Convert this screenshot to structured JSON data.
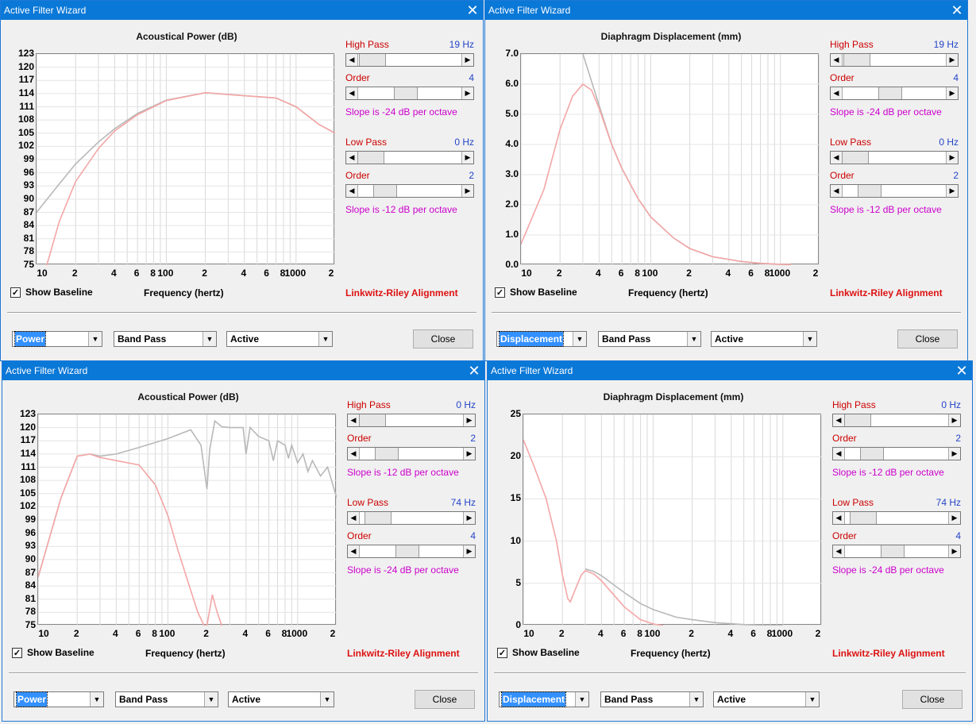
{
  "windows": [
    {
      "title": "Active Filter Wizard",
      "chart_title": "Acoustical Power (dB)",
      "kind": "power",
      "high_pass": {
        "label": "High Pass",
        "value": "19 Hz",
        "order_label": "Order",
        "order": "4",
        "slope": "Slope is -24 dB per octave"
      },
      "low_pass": {
        "label": "Low Pass",
        "value": "0 Hz",
        "order_label": "Order",
        "order": "2",
        "slope": "Slope is -12 dB per octave"
      },
      "show_baseline": "Show Baseline",
      "x_axis_title": "Frequency (hertz)",
      "alignment": "Linkwitz-Riley Alignment",
      "mode": "Power",
      "band": "Band Pass",
      "type": "Active",
      "close": "Close",
      "sliders": {
        "hp": 0.02,
        "hp_order": 0.45,
        "lp": 0.0,
        "lp_order": 0.2
      }
    },
    {
      "title": "Active Filter Wizard",
      "chart_title": "Diaphragm Displacement (mm)",
      "kind": "disp",
      "high_pass": {
        "label": "High Pass",
        "value": "19 Hz",
        "order_label": "Order",
        "order": "4",
        "slope": "Slope is -24 dB per octave"
      },
      "low_pass": {
        "label": "Low Pass",
        "value": "0 Hz",
        "order_label": "Order",
        "order": "2",
        "slope": "Slope is -12 dB per octave"
      },
      "show_baseline": "Show Baseline",
      "x_axis_title": "Frequency (hertz)",
      "alignment": "Linkwitz-Riley Alignment",
      "mode": "Displacement",
      "band": "Band Pass",
      "type": "Active",
      "close": "Close",
      "sliders": {
        "hp": 0.02,
        "hp_order": 0.45,
        "lp": 0.0,
        "lp_order": 0.2
      }
    },
    {
      "title": "Active Filter Wizard",
      "chart_title": "Acoustical Power (dB)",
      "kind": "power",
      "high_pass": {
        "label": "High Pass",
        "value": "0 Hz",
        "order_label": "Order",
        "order": "2",
        "slope": "Slope is -12 dB per octave"
      },
      "low_pass": {
        "label": "Low Pass",
        "value": "74 Hz",
        "order_label": "Order",
        "order": "4",
        "slope": "Slope is -24 dB per octave"
      },
      "show_baseline": "Show Baseline",
      "x_axis_title": "Frequency (hertz)",
      "alignment": "Linkwitz-Riley Alignment",
      "mode": "Power",
      "band": "Band Pass",
      "type": "Active",
      "close": "Close",
      "sliders": {
        "hp": 0.0,
        "hp_order": 0.2,
        "lp": 0.07,
        "lp_order": 0.45
      }
    },
    {
      "title": "Active Filter Wizard",
      "chart_title": "Diaphragm Displacement (mm)",
      "kind": "disp",
      "high_pass": {
        "label": "High Pass",
        "value": "0 Hz",
        "order_label": "Order",
        "order": "2",
        "slope": "Slope is -12 dB per octave"
      },
      "low_pass": {
        "label": "Low Pass",
        "value": "74 Hz",
        "order_label": "Order",
        "order": "4",
        "slope": "Slope is -24 dB per octave"
      },
      "show_baseline": "Show Baseline",
      "x_axis_title": "Frequency (hertz)",
      "alignment": "Linkwitz-Riley Alignment",
      "mode": "Displacement",
      "band": "Band Pass",
      "type": "Active",
      "close": "Close",
      "sliders": {
        "hp": 0.0,
        "hp_order": 0.2,
        "lp": 0.07,
        "lp_order": 0.45
      }
    }
  ],
  "chart_data": [
    {
      "type": "line",
      "title": "Acoustical Power (dB)",
      "xlabel": "Frequency (hertz)",
      "x_scale": "log",
      "xlim": [
        10,
        2000
      ],
      "ylim": [
        75,
        123
      ],
      "x_ticks": [
        "10",
        "2",
        "4",
        "6",
        "8",
        "100",
        "2",
        "4",
        "6",
        "8",
        "1000",
        "2"
      ],
      "y_ticks": [
        "123",
        "120",
        "117",
        "114",
        "111",
        "108",
        "105",
        "102",
        "99",
        "96",
        "93",
        "90",
        "87",
        "84",
        "81",
        "78",
        "75"
      ],
      "series": [
        {
          "color": "#b8b8b8",
          "x": [
            10,
            15,
            20,
            30,
            40,
            60,
            100,
            200,
            400,
            700,
            1000,
            1500,
            2000
          ],
          "y": [
            87,
            93.5,
            98,
            103,
            106,
            109.5,
            112.5,
            114.2,
            113.5,
            113,
            111,
            107,
            105
          ]
        },
        {
          "color": "#f4a6a6",
          "x": [
            12,
            15,
            20,
            30,
            40,
            60,
            100,
            200,
            400,
            700,
            1000,
            1500,
            2000
          ],
          "y": [
            75,
            85,
            94,
            101.5,
            105.5,
            109.2,
            112.4,
            114.2,
            113.5,
            113,
            111,
            107,
            105
          ]
        }
      ]
    },
    {
      "type": "line",
      "title": "Diaphragm Displacement (mm)",
      "xlabel": "Frequency (hertz)",
      "x_scale": "log",
      "xlim": [
        10,
        2000
      ],
      "ylim": [
        0,
        7
      ],
      "x_ticks": [
        "10",
        "2",
        "4",
        "6",
        "8",
        "100",
        "2",
        "4",
        "6",
        "8",
        "1000",
        "2"
      ],
      "y_ticks": [
        "7.0",
        "6.0",
        "5.0",
        "4.0",
        "3.0",
        "2.0",
        "1.0",
        "0.0"
      ],
      "series": [
        {
          "color": "#b8b8b8",
          "x": [
            30,
            40,
            50,
            60,
            80,
            100,
            150,
            200,
            300,
            500,
            700,
            1000,
            1200
          ],
          "y": [
            7.0,
            5.3,
            4.0,
            3.2,
            2.2,
            1.6,
            0.9,
            0.55,
            0.28,
            0.12,
            0.06,
            0.03,
            0.02
          ]
        },
        {
          "color": "#f4a6a6",
          "x": [
            10,
            15,
            20,
            25,
            30,
            35,
            40,
            50,
            60,
            80,
            100,
            150,
            200,
            300,
            500,
            700,
            1000,
            1200
          ],
          "y": [
            0.7,
            2.5,
            4.5,
            5.6,
            6.0,
            5.8,
            5.2,
            4.0,
            3.2,
            2.2,
            1.6,
            0.9,
            0.55,
            0.28,
            0.12,
            0.06,
            0.03,
            0.02
          ]
        }
      ]
    },
    {
      "type": "line",
      "title": "Acoustical Power (dB)",
      "xlabel": "Frequency (hertz)",
      "x_scale": "log",
      "xlim": [
        10,
        2000
      ],
      "ylim": [
        75,
        123
      ],
      "x_ticks": [
        "10",
        "2",
        "4",
        "6",
        "8",
        "100",
        "2",
        "4",
        "6",
        "8",
        "1000",
        "2"
      ],
      "y_ticks": [
        "123",
        "120",
        "117",
        "114",
        "111",
        "108",
        "105",
        "102",
        "99",
        "96",
        "93",
        "90",
        "87",
        "84",
        "81",
        "78",
        "75"
      ],
      "series": [
        {
          "color": "#b8b8b8",
          "x": [
            10,
            15,
            20,
            25,
            30,
            40,
            60,
            100,
            150,
            180,
            200,
            210,
            230,
            260,
            300,
            380,
            400,
            430,
            500,
            600,
            650,
            700,
            800,
            850,
            900,
            1000,
            1100,
            1200,
            1300,
            1500,
            1700,
            2000
          ],
          "y": [
            86,
            104,
            113.5,
            114,
            113.5,
            114,
            115.5,
            117.5,
            119.5,
            116,
            106,
            115,
            121.5,
            120.2,
            120,
            120,
            114,
            120,
            118,
            117,
            112.5,
            117,
            116,
            113,
            116,
            112,
            114,
            110,
            112.5,
            109,
            111,
            104
          ]
        },
        {
          "color": "#f4a6a6",
          "x": [
            10,
            15,
            20,
            25,
            30,
            40,
            60,
            80,
            100,
            120,
            150,
            170,
            190,
            200,
            220,
            240,
            260
          ],
          "y": [
            86,
            104,
            113.5,
            114,
            113.2,
            112.5,
            111.5,
            107,
            100,
            92,
            83,
            78,
            75,
            75,
            82,
            78,
            75
          ]
        }
      ]
    },
    {
      "type": "line",
      "title": "Diaphragm Displacement (mm)",
      "xlabel": "Frequency (hertz)",
      "x_scale": "log",
      "xlim": [
        10,
        2000
      ],
      "ylim": [
        0,
        25
      ],
      "x_ticks": [
        "10",
        "2",
        "4",
        "6",
        "8",
        "100",
        "2",
        "4",
        "6",
        "8",
        "1000",
        "2"
      ],
      "y_ticks": [
        "25",
        "20",
        "15",
        "10",
        "5",
        "0"
      ],
      "series": [
        {
          "color": "#b8b8b8",
          "x": [
            30,
            35,
            40,
            50,
            60,
            80,
            100,
            150,
            200,
            300,
            500,
            700,
            1000
          ],
          "y": [
            6.7,
            6.4,
            5.9,
            4.8,
            3.9,
            2.6,
            1.9,
            1.0,
            0.7,
            0.35,
            0.12,
            0.06,
            0.03
          ]
        },
        {
          "color": "#f4a6a6",
          "x": [
            10,
            12,
            15,
            18,
            20,
            22,
            23,
            25,
            28,
            30,
            35,
            40,
            50,
            60,
            80,
            100,
            120
          ],
          "y": [
            22,
            19,
            15,
            10,
            6,
            3.2,
            2.8,
            4.2,
            6.0,
            6.5,
            6.1,
            5.3,
            3.6,
            2.2,
            0.7,
            0.2,
            0.0
          ]
        }
      ]
    }
  ]
}
